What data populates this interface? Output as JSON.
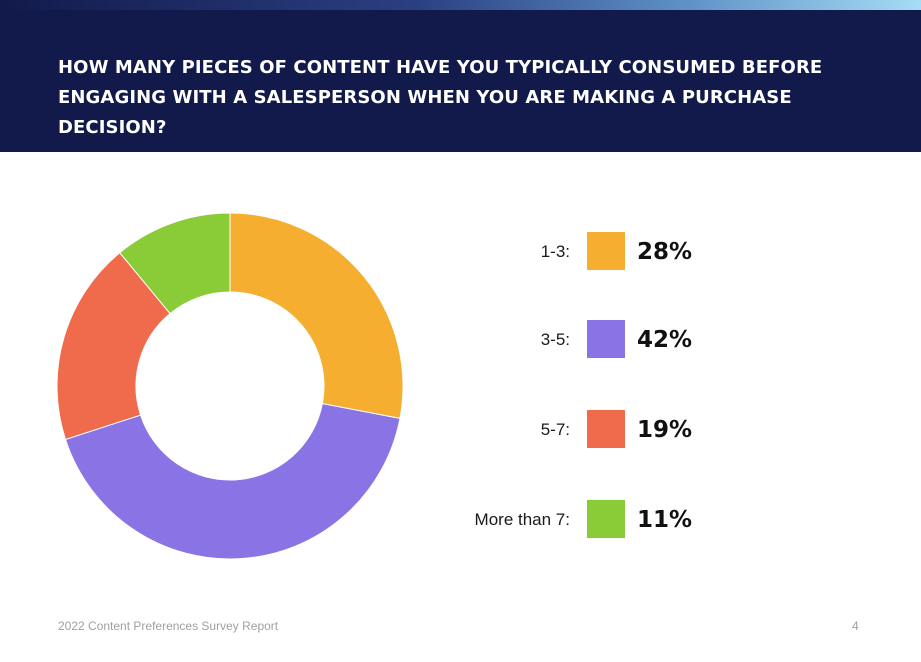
{
  "header": {
    "title_line1": "HOW MANY PIECES OF CONTENT HAVE YOU TYPICALLY CONSUMED BEFORE",
    "title_line2": "ENGAGING WITH A SALESPERSON WHEN YOU ARE MAKING A PURCHASE DECISION?"
  },
  "chart_data": {
    "type": "pie",
    "donut": true,
    "categories": [
      "1-3:",
      "3-5:",
      "5-7:",
      "More than 7:"
    ],
    "values": [
      28,
      42,
      19,
      11
    ],
    "display_values": [
      "28%",
      "42%",
      "19%",
      "11%"
    ],
    "colors": [
      "#f5ae2f",
      "#8a73e4",
      "#f06a4c",
      "#8acb38"
    ],
    "title": "",
    "legend_position": "right"
  },
  "footer": {
    "report_name": "2022 Content Preferences Survey Report",
    "page_number": "4"
  }
}
